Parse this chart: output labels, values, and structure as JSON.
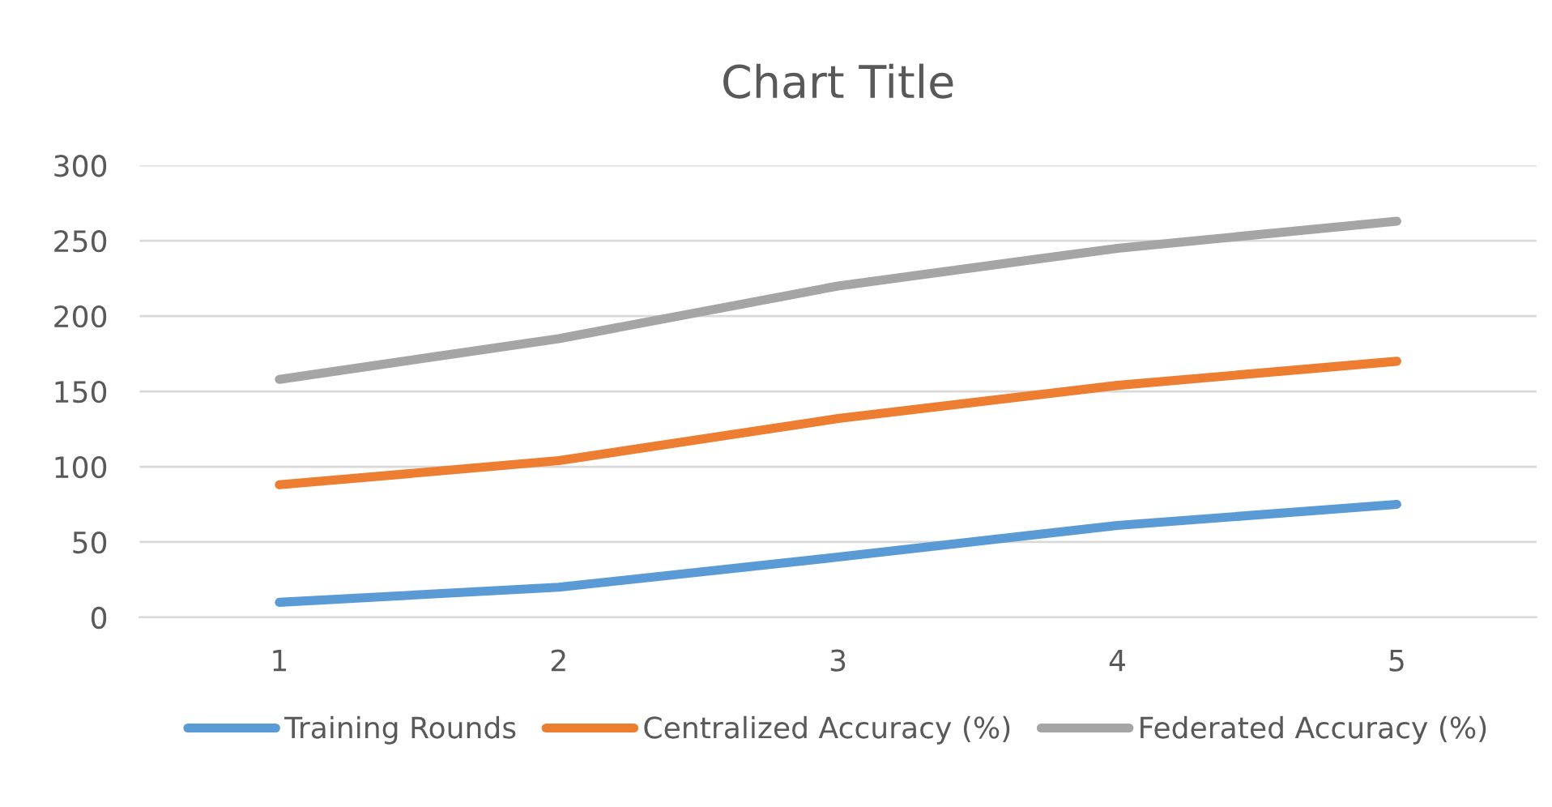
{
  "chart_data": {
    "type": "line",
    "title": "Chart Title",
    "categories": [
      "1",
      "2",
      "3",
      "4",
      "5"
    ],
    "series": [
      {
        "name": "Training Rounds",
        "color": "#5b9bd5",
        "values": [
          10,
          20,
          40,
          61,
          75
        ]
      },
      {
        "name": "Centralized Accuracy (%)",
        "color": "#ed7d31",
        "values": [
          88,
          104,
          132,
          154,
          170
        ]
      },
      {
        "name": "Federated Accuracy (%)",
        "color": "#a5a5a5",
        "values": [
          158,
          185,
          220,
          245,
          263
        ]
      }
    ],
    "ylim": [
      0,
      300
    ],
    "yticks": [
      0,
      50,
      100,
      150,
      200,
      250,
      300
    ],
    "grid": "y",
    "legend": "bottom",
    "line_style": "solid",
    "marker": "none"
  }
}
